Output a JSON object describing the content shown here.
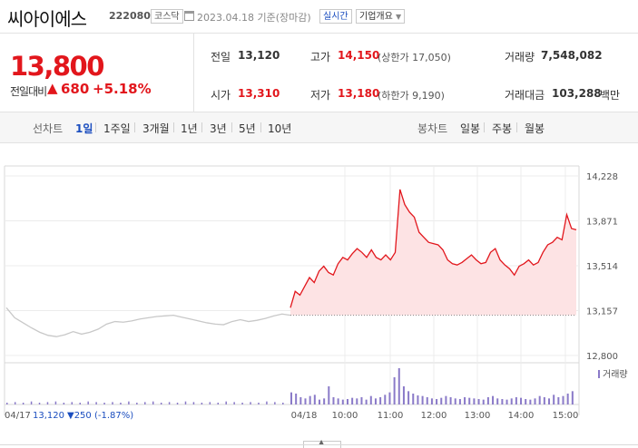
{
  "header": {
    "stock_name": "씨아이에스",
    "stock_code": "222080",
    "market": "코스닥",
    "date": "2023.04.18",
    "basis": "기준(장마감)",
    "realtime_label": "실시간",
    "company_info_label": "기업개요"
  },
  "summary": {
    "price": "13,800",
    "diff_label": "전일대비",
    "diff_arrow": "▲",
    "diff_value": "680",
    "diff_pct": "+5.18%",
    "prev_close_label": "전일",
    "prev_close": "13,120",
    "open_label": "시가",
    "open": "13,310",
    "high_label": "고가",
    "high": "14,150",
    "upper_limit": "(상한가 17,050)",
    "low_label": "저가",
    "low": "13,180",
    "lower_limit": "(하한가 9,190)",
    "volume_label": "거래량",
    "volume": "7,548,082",
    "amount_label": "거래대금",
    "amount": "103,288",
    "amount_unit": "백만"
  },
  "period": {
    "line_label": "선차트",
    "tabs": [
      "1일",
      "1주일",
      "3개월",
      "1년",
      "3년",
      "5년",
      "10년"
    ],
    "active": "1일",
    "candle_label": "봉차트",
    "candle_tabs": [
      "일봉",
      "주봉",
      "월봉"
    ]
  },
  "colors": {
    "up": "#e2161c",
    "down": "#1a4dbf",
    "prev_line": "#c8c8c8",
    "area_fill": "#fde3e4",
    "volume": "#8a7ac8"
  },
  "chart_data": {
    "type": "line",
    "y_ticks": [
      "14,228",
      "13,871",
      "13,514",
      "13,157",
      "12,800"
    ],
    "ylim": [
      12800,
      14228
    ],
    "x_ticks": [
      "04/17",
      "04/18",
      "10:00",
      "11:00",
      "12:00",
      "13:00",
      "14:00",
      "15:00"
    ],
    "volume_legend": "거래량",
    "prev_day_note_date": "04/17",
    "prev_day_note_price": "13,120",
    "prev_day_note_change": "▼250 (-1.87%)",
    "base_price": 13120,
    "series": [
      {
        "name": "04/17",
        "values": [
          13180,
          13100,
          13060,
          13020,
          12985,
          12960,
          12950,
          12965,
          12990,
          12970,
          12985,
          13010,
          13050,
          13070,
          13065,
          13075,
          13090,
          13100,
          13110,
          13115,
          13120,
          13105,
          13090,
          13075,
          13060,
          13050,
          13045,
          13070,
          13085,
          13070,
          13080,
          13095,
          13115,
          13130,
          13120
        ]
      },
      {
        "name": "04/18",
        "values": [
          13180,
          13310,
          13280,
          13350,
          13420,
          13380,
          13470,
          13510,
          13460,
          13440,
          13530,
          13580,
          13560,
          13610,
          13650,
          13620,
          13580,
          13640,
          13580,
          13560,
          13600,
          13560,
          13620,
          14120,
          14000,
          13940,
          13900,
          13780,
          13740,
          13700,
          13690,
          13680,
          13640,
          13560,
          13530,
          13520,
          13540,
          13570,
          13600,
          13560,
          13530,
          13540,
          13620,
          13650,
          13560,
          13520,
          13490,
          13440,
          13510,
          13530,
          13560,
          13520,
          13540,
          13620,
          13680,
          13700,
          13740,
          13720,
          13920,
          13810,
          13800
        ]
      }
    ],
    "volume": {
      "04/17": [
        3,
        4,
        3,
        5,
        3,
        4,
        5,
        3,
        4,
        3,
        5,
        4,
        3,
        4,
        3,
        5,
        3,
        4,
        5,
        3,
        4,
        3,
        5,
        4,
        3,
        4,
        3,
        5,
        4,
        3,
        4,
        3,
        5,
        4,
        3
      ],
      "04/18": [
        20,
        18,
        12,
        10,
        14,
        16,
        8,
        10,
        30,
        12,
        10,
        8,
        9,
        11,
        10,
        12,
        8,
        14,
        10,
        12,
        16,
        20,
        45,
        60,
        30,
        22,
        18,
        15,
        14,
        12,
        10,
        9,
        11,
        14,
        12,
        10,
        9,
        12,
        11,
        10,
        9,
        8,
        12,
        14,
        10,
        9,
        8,
        10,
        12,
        11,
        9,
        8,
        10,
        14,
        12,
        10,
        16,
        12,
        14,
        18,
        22
      ]
    }
  }
}
